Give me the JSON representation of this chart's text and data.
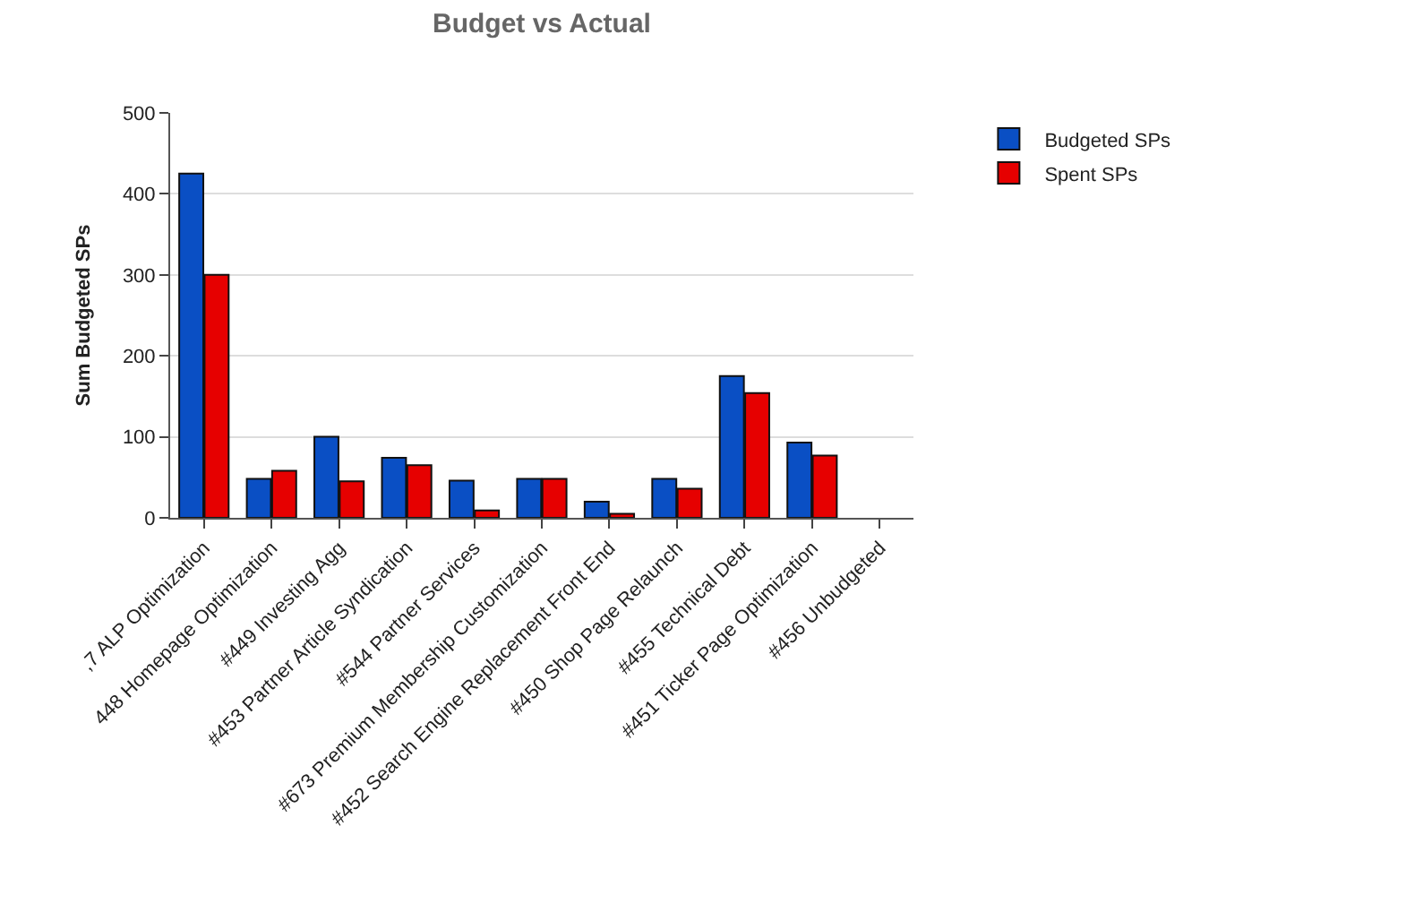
{
  "chart_data": {
    "type": "bar",
    "title": "Budget vs Actual",
    "ylabel": "Sum Budgeted SPs",
    "categories": [
      ",7 ALP Optimization",
      "448 Homepage Optimization",
      "#449 Investing Agg",
      "#453 Partner Article Syndication",
      "#544 Partner Services",
      "#673 Premium Membership Customization",
      "#452 Search Engine Replacement Front End",
      "#450 Shop Page Relaunch",
      "#455 Technical Debt",
      "#451 Ticker Page Optimization",
      "#456 Unbudgeted"
    ],
    "series": [
      {
        "name": "Budgeted SPs",
        "color": "#0a4fc4",
        "values": [
          425,
          48,
          100,
          74,
          46,
          48,
          20,
          48,
          175,
          93,
          null
        ]
      },
      {
        "name": "Spent SPs",
        "color": "#e60000",
        "values": [
          300,
          58,
          45,
          65,
          9,
          48,
          5,
          36,
          154,
          77,
          null
        ]
      }
    ],
    "ylim": [
      0,
      500
    ],
    "yticks": [
      0,
      100,
      200,
      300,
      400,
      500
    ],
    "grid": "y",
    "legend": "top right"
  }
}
